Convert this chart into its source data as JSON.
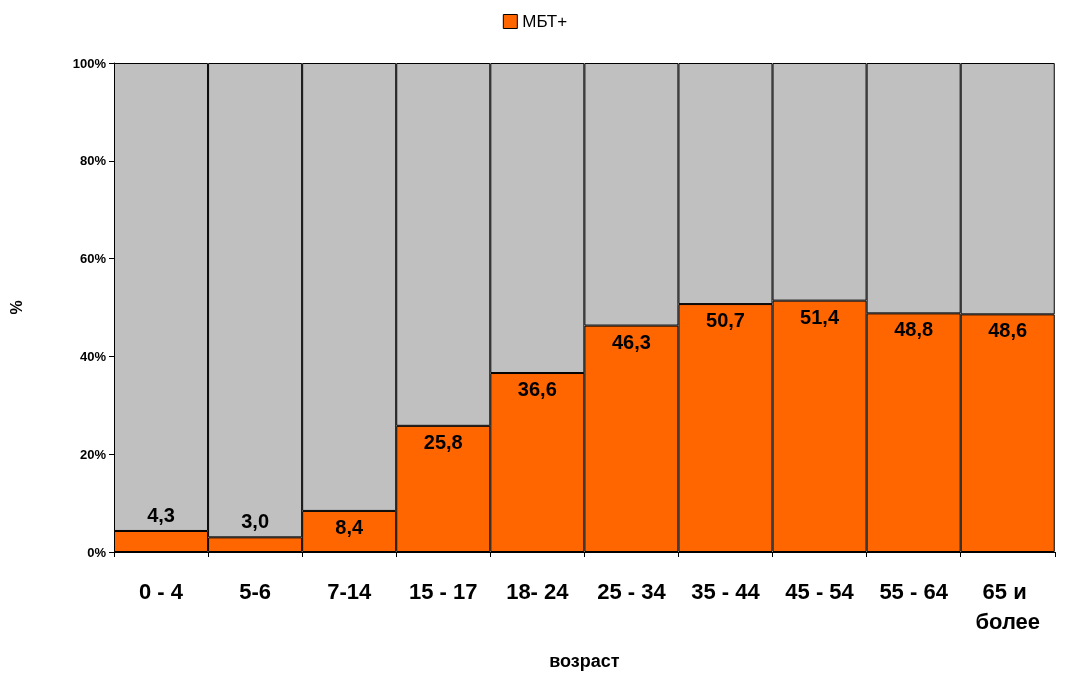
{
  "chart_data": {
    "type": "bar",
    "stacked": true,
    "xlabel": "возраст",
    "ylabel": "%",
    "legend": "top",
    "categories": [
      "0 - 4",
      "5-6",
      "7-14",
      "15 - 17",
      "18- 24",
      "25 - 34",
      "35 - 44",
      "45 - 54",
      "55 - 64",
      "65 и более"
    ],
    "series": [
      {
        "name": "МБТ+",
        "color": "#ff6600",
        "values": [
          4.3,
          3.0,
          8.4,
          25.8,
          36.6,
          46.3,
          50.7,
          51.4,
          48.8,
          48.6
        ],
        "value_labels": [
          "4,3",
          "3,0",
          "8,4",
          "25,8",
          "36,6",
          "46,3",
          "50,7",
          "51,4",
          "48,8",
          "48,6"
        ]
      },
      {
        "color": "#c0c0c0",
        "values": [
          95.7,
          97.0,
          91.6,
          74.2,
          63.4,
          53.7,
          49.3,
          48.6,
          51.2,
          51.4
        ]
      }
    ],
    "ylim": [
      0,
      100
    ],
    "yticks": [
      {
        "value": 0,
        "label": "0%"
      },
      {
        "value": 20,
        "label": "20%"
      },
      {
        "value": 40,
        "label": "40%"
      },
      {
        "value": 60,
        "label": "60%"
      },
      {
        "value": 80,
        "label": "80%"
      },
      {
        "value": 100,
        "label": "100%"
      }
    ]
  }
}
